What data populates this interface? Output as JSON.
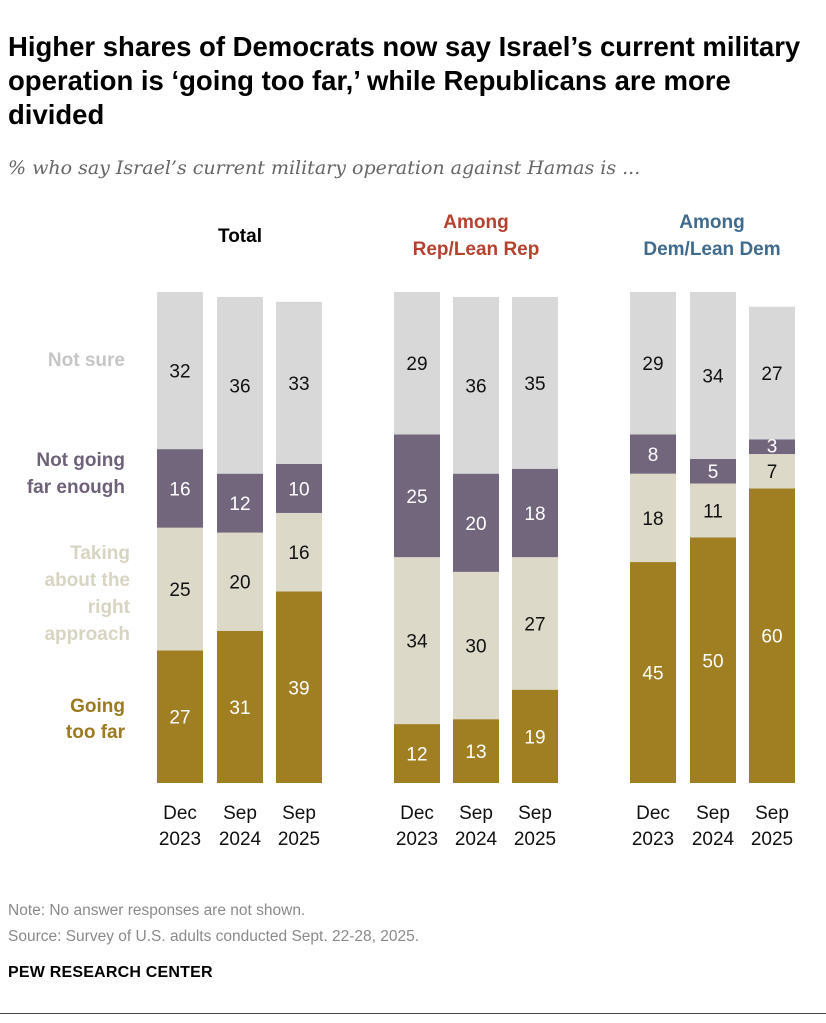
{
  "title": "Higher shares of Democrats now say Israel’s current military operation is ‘going too far,’ while Republicans are more divided",
  "subtitle": "% who say Israel’s current military operation against Hamas is ...",
  "note": "Note: No answer responses are not shown.",
  "source": "Source: Survey of U.S. adults conducted Sept. 22-28, 2025.",
  "logo": "PEW RESEARCH CENTER",
  "chart_data": {
    "type": "bar",
    "stacked": true,
    "categories": [
      [
        "Dec",
        "2023"
      ],
      [
        "Sep",
        "2024"
      ],
      [
        "Sep",
        "2025"
      ]
    ],
    "legend": [
      {
        "name": "Not sure",
        "lines": [
          "Not sure"
        ],
        "color": "#d8d8d8",
        "label_color": "#c6c6c6"
      },
      {
        "name": "Not going far enough",
        "lines": [
          "Not going",
          "far enough"
        ],
        "color": "#72667c",
        "label_color": "#6e6278"
      },
      {
        "name": "Taking about the right approach",
        "lines": [
          "Taking",
          "about the",
          "right",
          "approach"
        ],
        "color": "#dcd9c9",
        "label_color": "#d8d4c2"
      },
      {
        "name": "Going too far",
        "lines": [
          "Going",
          "too far"
        ],
        "color": "#a07e22",
        "label_color": "#9c7a22"
      }
    ],
    "panels": [
      {
        "title": [
          "Total"
        ],
        "title_color": "#000000",
        "series": {
          "Going too far": [
            27,
            31,
            39
          ],
          "Taking about the right approach": [
            25,
            20,
            16
          ],
          "Not going far enough": [
            16,
            12,
            10
          ],
          "Not sure": [
            32,
            36,
            33
          ]
        }
      },
      {
        "title": [
          "Among",
          "Rep/Lean Rep"
        ],
        "title_color": "#b5422e",
        "series": {
          "Going too far": [
            12,
            13,
            19
          ],
          "Taking about the right approach": [
            34,
            30,
            27
          ],
          "Not going far enough": [
            25,
            20,
            18
          ],
          "Not sure": [
            29,
            36,
            35
          ]
        }
      },
      {
        "title": [
          "Among",
          "Dem/Lean Dem"
        ],
        "title_color": "#3f6b8f",
        "series": {
          "Going too far": [
            45,
            50,
            60
          ],
          "Taking about the right approach": [
            18,
            11,
            7
          ],
          "Not going far enough": [
            8,
            5,
            3
          ],
          "Not sure": [
            29,
            34,
            27
          ]
        }
      }
    ]
  }
}
